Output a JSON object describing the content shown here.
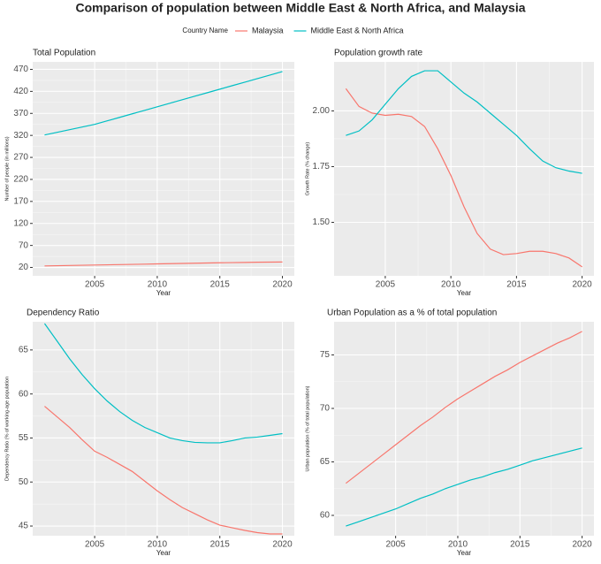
{
  "title": "Comparison of population between Middle East & North Africa, and Malaysia",
  "legend_title": "Country Name",
  "chart_data": [
    {
      "type": "line",
      "title": "Total Population",
      "xlabel": "Year",
      "ylabel": "Number of people (in millions)",
      "x": [
        2001,
        2002,
        2003,
        2004,
        2005,
        2006,
        2007,
        2008,
        2009,
        2010,
        2011,
        2012,
        2013,
        2014,
        2015,
        2016,
        2017,
        2018,
        2019,
        2020
      ],
      "series": [
        {
          "name": "Malaysia",
          "color": "#F8766D",
          "values": [
            23.5,
            24.0,
            24.5,
            25.0,
            25.5,
            26.0,
            26.5,
            27.0,
            27.5,
            28.1,
            28.6,
            29.1,
            29.6,
            30.1,
            30.6,
            31.0,
            31.4,
            31.8,
            32.1,
            32.4
          ]
        },
        {
          "name": "Middle East & North Africa",
          "color": "#00BFC4",
          "values": [
            321,
            327,
            333,
            339,
            345,
            353,
            361,
            369,
            377,
            385,
            393,
            401,
            409,
            417,
            425,
            433,
            441,
            449,
            457,
            465
          ]
        }
      ],
      "xlim": [
        2000.05,
        2020.95
      ],
      "ylim": [
        1,
        487
      ],
      "xticks": [
        2005,
        2010,
        2015,
        2020
      ],
      "yticks": [
        20,
        70,
        120,
        170,
        220,
        270,
        320,
        370,
        420,
        470
      ],
      "grid": true
    },
    {
      "type": "line",
      "title": "Population growth rate",
      "xlabel": "Year",
      "ylabel": "Growth Rate (% change)",
      "x": [
        2002,
        2003,
        2004,
        2005,
        2006,
        2007,
        2008,
        2009,
        2010,
        2011,
        2012,
        2013,
        2014,
        2015,
        2016,
        2017,
        2018,
        2019,
        2020
      ],
      "series": [
        {
          "name": "Malaysia",
          "color": "#F8766D",
          "values": [
            2.1,
            2.02,
            1.99,
            1.98,
            1.985,
            1.975,
            1.93,
            1.83,
            1.71,
            1.57,
            1.45,
            1.38,
            1.355,
            1.36,
            1.37,
            1.37,
            1.36,
            1.34,
            1.3
          ]
        },
        {
          "name": "Middle East & North Africa",
          "color": "#00BFC4",
          "values": [
            1.89,
            1.91,
            1.96,
            2.03,
            2.1,
            2.155,
            2.18,
            2.18,
            2.13,
            2.08,
            2.04,
            1.99,
            1.94,
            1.89,
            1.83,
            1.775,
            1.745,
            1.73,
            1.72
          ]
        }
      ],
      "xlim": [
        2001.1,
        2020.9
      ],
      "ylim": [
        1.26,
        2.22
      ],
      "xticks": [
        2005,
        2010,
        2015,
        2020
      ],
      "yticks": [
        {
          "value": 1.5,
          "label": "1.50"
        },
        {
          "value": 1.75,
          "label": "1.75"
        },
        {
          "value": 2,
          "label": "2.00"
        }
      ],
      "grid": true
    },
    {
      "type": "line",
      "title": "Dependency Ratio",
      "xlabel": "Year",
      "ylabel": "Dependency Ratio (% of working-age population",
      "x": [
        2001,
        2002,
        2003,
        2004,
        2005,
        2006,
        2007,
        2008,
        2009,
        2010,
        2011,
        2012,
        2013,
        2014,
        2015,
        2016,
        2017,
        2018,
        2019,
        2020
      ],
      "series": [
        {
          "name": "Malaysia",
          "color": "#F8766D",
          "values": [
            58.6,
            57.4,
            56.2,
            54.8,
            53.5,
            52.8,
            52.0,
            51.2,
            50.1,
            49.0,
            48.0,
            47.1,
            46.4,
            45.7,
            45.1,
            44.8,
            44.5,
            44.25,
            44.1,
            44.1
          ]
        },
        {
          "name": "Middle East & North Africa",
          "color": "#00BFC4",
          "values": [
            68.0,
            66.0,
            64.0,
            62.2,
            60.6,
            59.2,
            58.0,
            57.0,
            56.2,
            55.6,
            55.0,
            54.7,
            54.5,
            54.45,
            54.45,
            54.7,
            55.0,
            55.1,
            55.3,
            55.5
          ]
        }
      ],
      "xlim": [
        2000.05,
        2020.95
      ],
      "ylim": [
        43.9,
        68.2
      ],
      "xticks": [
        2005,
        2010,
        2015,
        2020
      ],
      "yticks": [
        45,
        50,
        55,
        60,
        65
      ],
      "grid": true
    },
    {
      "type": "line",
      "title": "Urban Population as a % of total population",
      "xlabel": "Year",
      "ylabel": "Urban population (% of total population)",
      "x": [
        2001,
        2002,
        2003,
        2004,
        2005,
        2006,
        2007,
        2008,
        2009,
        2010,
        2011,
        2012,
        2013,
        2014,
        2015,
        2016,
        2017,
        2018,
        2019,
        2020
      ],
      "series": [
        {
          "name": "Malaysia",
          "color": "#F8766D",
          "values": [
            63.0,
            63.9,
            64.8,
            65.7,
            66.6,
            67.5,
            68.4,
            69.2,
            70.1,
            70.9,
            71.6,
            72.3,
            73.0,
            73.6,
            74.3,
            74.9,
            75.5,
            76.1,
            76.6,
            77.2
          ]
        },
        {
          "name": "Middle East & North Africa",
          "color": "#00BFC4",
          "values": [
            59.0,
            59.4,
            59.8,
            60.2,
            60.6,
            61.1,
            61.6,
            62.0,
            62.5,
            62.9,
            63.3,
            63.6,
            64.0,
            64.3,
            64.7,
            65.1,
            65.4,
            65.7,
            66.0,
            66.3
          ]
        }
      ],
      "xlim": [
        2000.05,
        2020.95
      ],
      "ylim": [
        58.1,
        78.1
      ],
      "xticks": [
        2005,
        2010,
        2015,
        2020
      ],
      "yticks": [
        60,
        65,
        70,
        75
      ],
      "grid": true
    }
  ]
}
